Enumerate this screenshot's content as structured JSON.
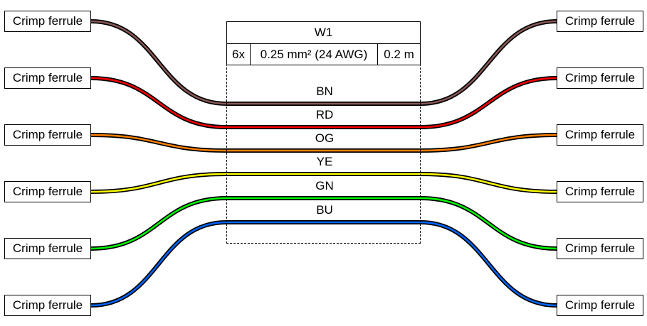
{
  "cable": {
    "name": "W1",
    "count": "6x",
    "gauge": "0.25 mm² (24 AWG)",
    "length": "0.2 m"
  },
  "connector_label": "Crimp ferrule",
  "wires": [
    {
      "code": "BN",
      "color": "#895956"
    },
    {
      "code": "RD",
      "color": "#ff0000"
    },
    {
      "code": "OG",
      "color": "#ff8000"
    },
    {
      "code": "YE",
      "color": "#ffff00"
    },
    {
      "code": "GN",
      "color": "#00ff00"
    },
    {
      "code": "BU",
      "color": "#0066ff"
    }
  ]
}
